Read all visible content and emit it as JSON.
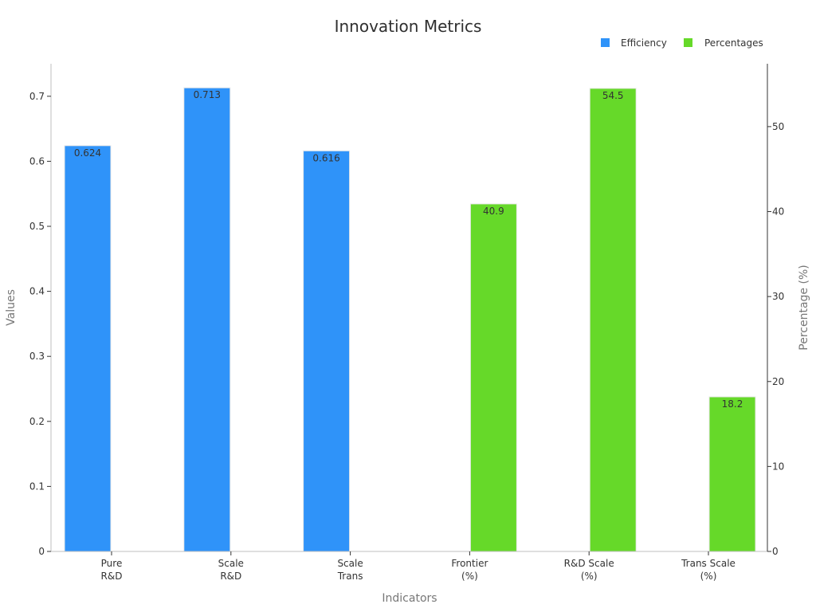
{
  "chart_data": {
    "type": "bar",
    "title": "Innovation Metrics",
    "xlabel": "Indicators",
    "ylabel": "Values",
    "y2label": "Percentage (%)",
    "categories": [
      [
        "Pure",
        "R&D"
      ],
      [
        "Scale",
        "R&D"
      ],
      [
        "Scale",
        "Trans"
      ],
      [
        "Frontier",
        "(%)"
      ],
      [
        "R&D Scale",
        "(%)"
      ],
      [
        "Trans Scale",
        "(%)"
      ]
    ],
    "series": [
      {
        "name": "Efficiency",
        "axis": "left",
        "color": "#2f93f9",
        "values": [
          0.624,
          0.713,
          0.616,
          null,
          null,
          null
        ],
        "labels": [
          "0.624",
          "0.713",
          "0.616",
          null,
          null,
          null
        ]
      },
      {
        "name": "Percentages",
        "axis": "right",
        "color": "#66d929",
        "values": [
          null,
          null,
          null,
          40.9,
          54.5,
          18.2
        ],
        "labels": [
          null,
          null,
          null,
          "40.9",
          "54.5",
          "18.2"
        ]
      }
    ],
    "ylim": [
      0,
      0.75
    ],
    "y_ticks": [
      "0",
      "0.1",
      "0.2",
      "0.3",
      "0.4",
      "0.5",
      "0.6",
      "0.7"
    ],
    "y2lim": [
      0,
      57.4
    ],
    "y2_ticks": [
      "0",
      "10",
      "20",
      "30",
      "40",
      "50"
    ],
    "legend_position": "top-right",
    "grid": false
  }
}
